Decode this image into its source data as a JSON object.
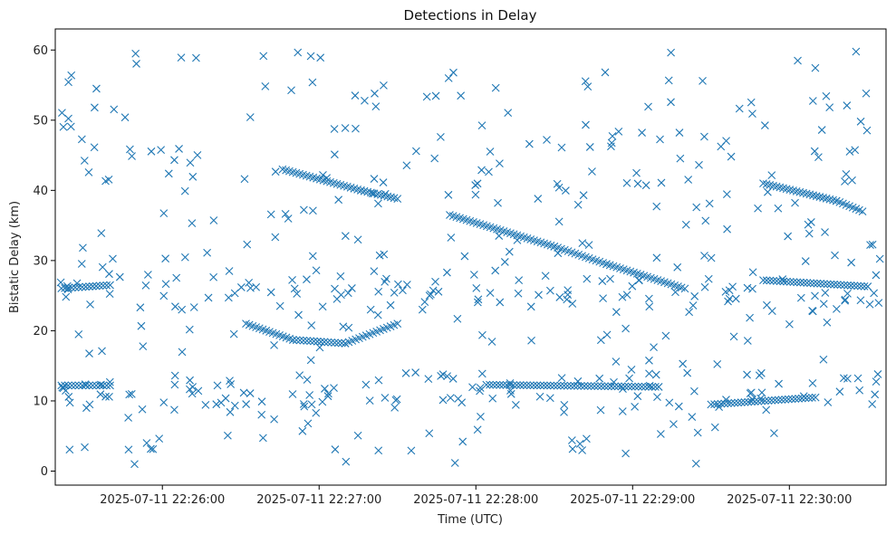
{
  "chart_data": {
    "type": "scatter",
    "title": "Detections in Delay",
    "xlabel": "Time (UTC)",
    "ylabel": "Bistatic Delay (km)",
    "marker": "x",
    "color": "#1f77b4",
    "grid": false,
    "x_unit": "UTC time",
    "xlim": [
      "2025-07-11 22:25:19",
      "2025-07-11 22:30:37"
    ],
    "ylim": [
      -2,
      63
    ],
    "x_ticks": [
      "2025-07-11 22:26:00",
      "2025-07-11 22:27:00",
      "2025-07-11 22:28:00",
      "2025-07-11 22:29:00",
      "2025-07-11 22:30:00"
    ],
    "y_ticks": [
      0,
      10,
      20,
      30,
      40,
      50,
      60
    ],
    "tracks": [
      {
        "label": "track",
        "points": [
          [
            "2025-07-11 22:26:46",
            "43.0"
          ],
          [
            "2025-07-11 22:27:16",
            "40.0"
          ],
          [
            "2025-07-11 22:27:30",
            "38.8"
          ]
        ]
      },
      {
        "label": "track",
        "points": [
          [
            "2025-07-11 22:27:50",
            "36.5"
          ],
          [
            "2025-07-11 22:28:30",
            "32.0"
          ],
          [
            "2025-07-11 22:28:50",
            "29.5"
          ],
          [
            "2025-07-11 22:29:20",
            "26.0"
          ]
        ]
      },
      {
        "label": "track",
        "points": [
          [
            "2025-07-11 22:29:50",
            "41.0"
          ],
          [
            "2025-07-11 22:30:18",
            "38.5"
          ],
          [
            "2025-07-11 22:30:28",
            "37.0"
          ]
        ]
      },
      {
        "label": "track",
        "points": [
          [
            "2025-07-11 22:26:32",
            "21.0"
          ],
          [
            "2025-07-11 22:26:50",
            "18.7"
          ],
          [
            "2025-07-11 22:27:10",
            "18.2"
          ],
          [
            "2025-07-11 22:27:30",
            "21.0"
          ]
        ]
      },
      {
        "label": "track",
        "points": [
          [
            "2025-07-11 22:25:20",
            "12.2"
          ],
          [
            "2025-07-11 22:25:40",
            "12.2"
          ]
        ]
      },
      {
        "label": "track",
        "points": [
          [
            "2025-07-11 22:28:04",
            "12.3"
          ],
          [
            "2025-07-11 22:29:10",
            "12.0"
          ]
        ]
      },
      {
        "label": "track",
        "points": [
          [
            "2025-07-11 22:29:30",
            "9.5"
          ],
          [
            "2025-07-11 22:30:10",
            "10.5"
          ]
        ]
      },
      {
        "label": "track",
        "points": [
          [
            "2025-07-11 22:25:20",
            "26.0"
          ],
          [
            "2025-07-11 22:25:40",
            "26.5"
          ]
        ]
      },
      {
        "label": "track",
        "points": [
          [
            "2025-07-11 22:29:50",
            "27.2"
          ],
          [
            "2025-07-11 22:30:30",
            "26.3"
          ]
        ]
      }
    ],
    "scatter_seed": 7,
    "scatter_count": 520
  }
}
